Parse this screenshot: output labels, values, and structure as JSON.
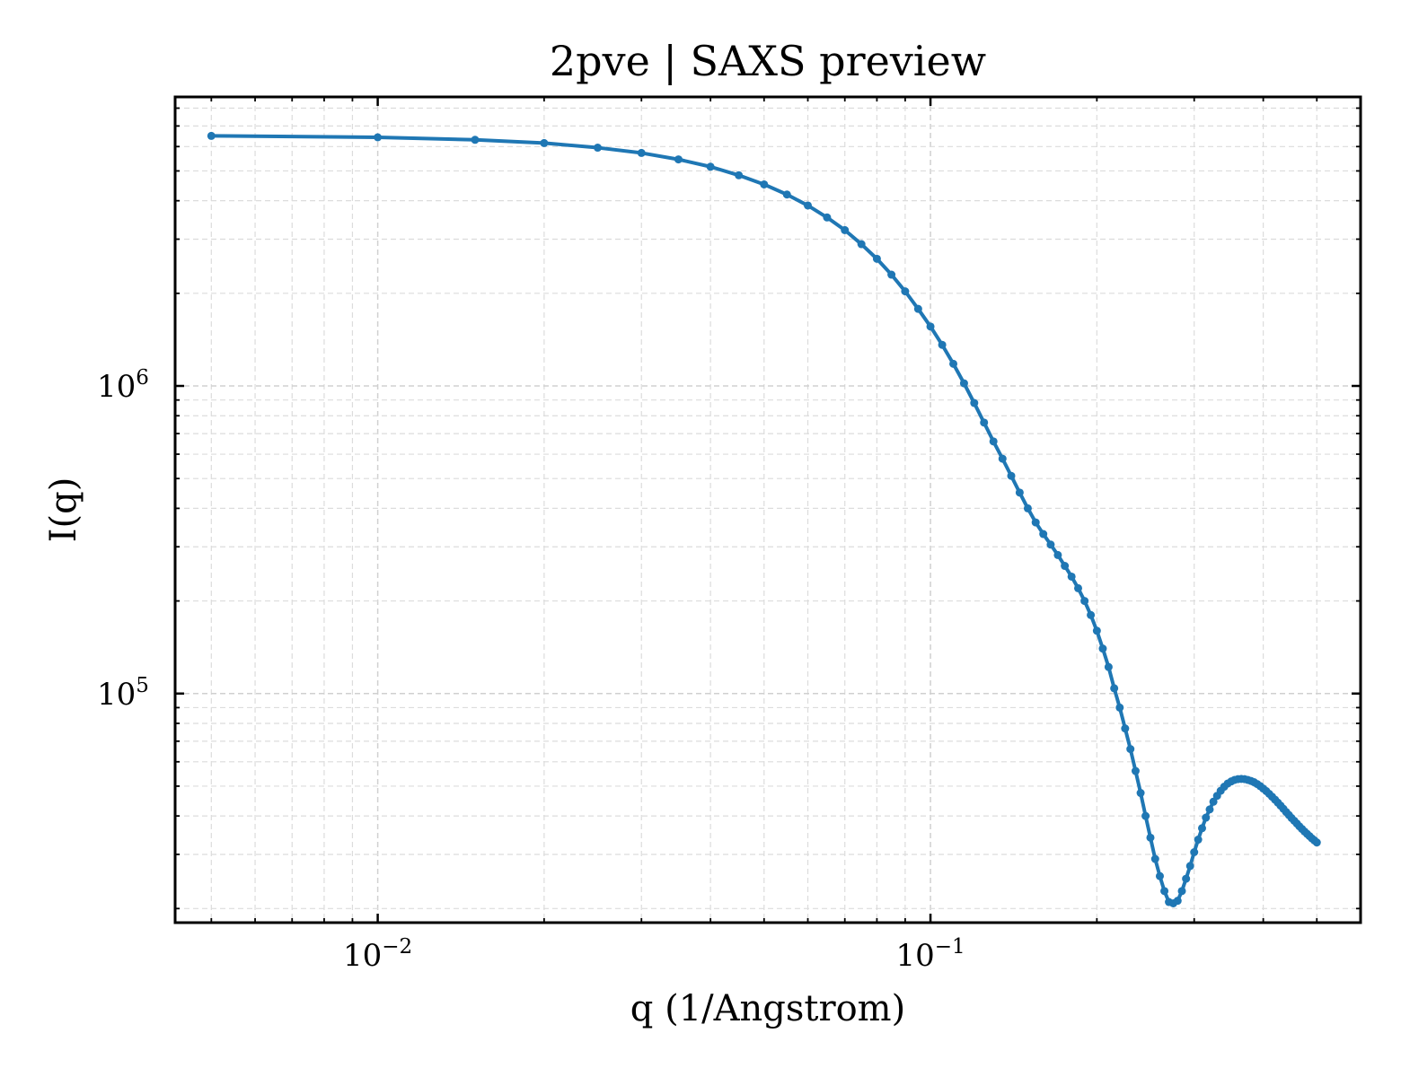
{
  "chart_data": {
    "type": "line",
    "title": "2pve | SAXS preview",
    "xlabel": "q (1/Angstrom)",
    "ylabel": "I(q)",
    "xscale": "log",
    "yscale": "log",
    "xlim": [
      0.0043,
      0.6
    ],
    "ylim": [
      18000,
      8700000
    ],
    "grid": true,
    "x_ticks": [
      {
        "value": 0.01,
        "base": "10",
        "exp": "−2"
      },
      {
        "value": 0.1,
        "base": "10",
        "exp": "−1"
      }
    ],
    "y_ticks": [
      {
        "value": 100000,
        "base": "10",
        "exp": "5"
      },
      {
        "value": 1000000,
        "base": "10",
        "exp": "6"
      }
    ],
    "series": [
      {
        "color": "#1f77b4",
        "markers": true,
        "x": [
          0.005,
          0.01,
          0.015,
          0.02,
          0.025,
          0.03,
          0.035,
          0.04,
          0.045,
          0.05,
          0.055,
          0.06,
          0.065,
          0.07,
          0.075,
          0.08,
          0.085,
          0.09,
          0.095,
          0.1,
          0.105,
          0.11,
          0.115,
          0.12,
          0.125,
          0.13,
          0.135,
          0.14,
          0.145,
          0.15,
          0.155,
          0.16,
          0.165,
          0.17,
          0.175,
          0.18,
          0.185,
          0.19,
          0.195,
          0.2,
          0.205,
          0.21,
          0.215,
          0.22,
          0.225,
          0.23,
          0.235,
          0.24,
          0.245,
          0.25,
          0.255,
          0.26,
          0.265,
          0.27,
          0.275,
          0.28,
          0.285,
          0.29,
          0.295,
          0.3,
          0.305,
          0.31,
          0.315,
          0.32,
          0.325,
          0.33,
          0.335,
          0.34,
          0.345,
          0.35,
          0.355,
          0.36,
          0.365,
          0.37,
          0.375,
          0.38,
          0.385,
          0.39,
          0.395,
          0.4,
          0.405,
          0.41,
          0.415,
          0.42,
          0.425,
          0.43,
          0.435,
          0.44,
          0.445,
          0.45,
          0.455,
          0.46,
          0.465,
          0.47,
          0.475,
          0.48,
          0.485,
          0.49,
          0.495,
          0.5
        ],
        "y": [
          6500000,
          6430000,
          6310000,
          6160000,
          5950000,
          5720000,
          5450000,
          5160000,
          4840000,
          4520000,
          4190000,
          3860000,
          3530000,
          3210000,
          2890000,
          2590000,
          2300000,
          2030000,
          1780000,
          1560000,
          1360000,
          1180000,
          1020000,
          880000,
          760000,
          660000,
          580000,
          510000,
          450000,
          400000,
          360000,
          330000,
          305000,
          282000,
          260000,
          240000,
          220000,
          200000,
          180000,
          160000,
          140000,
          122000,
          104000,
          90000,
          77000,
          66000,
          56000,
          47500,
          40000,
          34000,
          29000,
          25500,
          22800,
          21000,
          20800,
          21200,
          22800,
          25000,
          27500,
          30500,
          33500,
          36500,
          39500,
          42000,
          44500,
          46500,
          48300,
          49800,
          51000,
          51800,
          52400,
          52700,
          52800,
          52700,
          52400,
          52000,
          51500,
          50800,
          50000,
          49100,
          48200,
          47200,
          46200,
          45200,
          44200,
          43200,
          42200,
          41200,
          40300,
          39400,
          38600,
          37800,
          37000,
          36300,
          35600,
          35000,
          34400,
          33800,
          33300,
          32800
        ]
      }
    ]
  }
}
